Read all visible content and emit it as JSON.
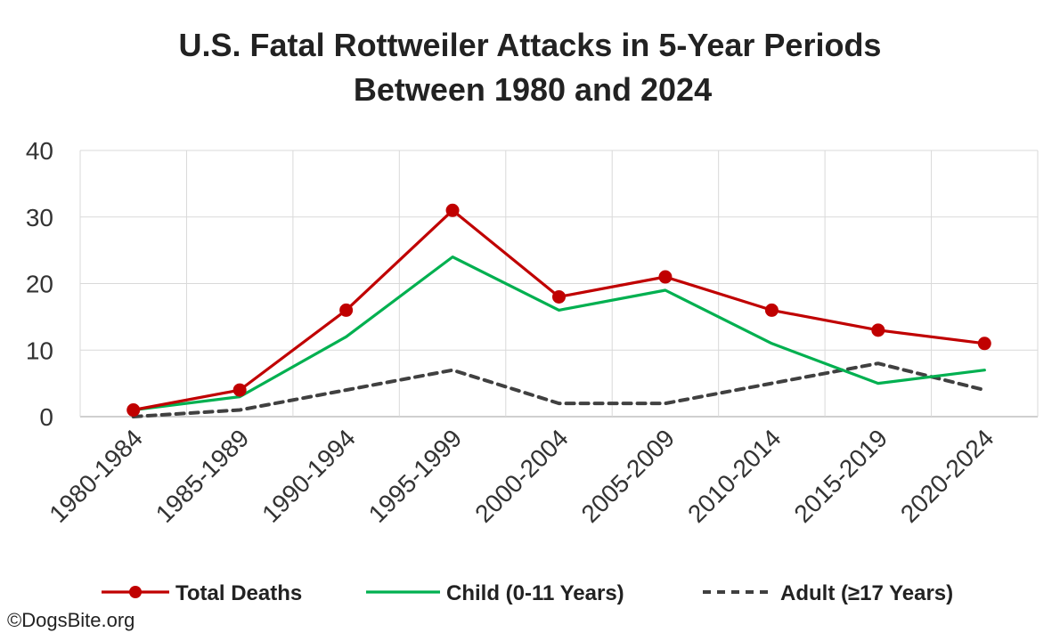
{
  "chart_data": {
    "type": "line",
    "title_line1": "U.S. Fatal Rottweiler Attacks in 5-Year Periods",
    "title_line2": "Between 1980 and 2024",
    "categories": [
      "1980-1984",
      "1985-1989",
      "1990-1994",
      "1995-1999",
      "2000-2004",
      "2005-2009",
      "2010-2014",
      "2015-2019",
      "2020-2024"
    ],
    "ylim": [
      0,
      40
    ],
    "yticks": [
      0,
      10,
      20,
      30,
      40
    ],
    "grid": true,
    "legend_position": "bottom",
    "series": [
      {
        "name": "Total Deaths",
        "values": [
          1,
          4,
          16,
          31,
          18,
          21,
          16,
          13,
          11
        ],
        "color": "#c00000",
        "style": "solid-markers"
      },
      {
        "name": "Child (0-11 Years)",
        "values": [
          1,
          3,
          12,
          24,
          16,
          19,
          11,
          5,
          7
        ],
        "color": "#00b050",
        "style": "solid"
      },
      {
        "name": "Adult (≥17 Years)",
        "values": [
          0,
          1,
          4,
          7,
          2,
          2,
          5,
          8,
          4
        ],
        "color": "#404040",
        "style": "dashed"
      }
    ]
  },
  "copyright": "©DogsBite.org"
}
